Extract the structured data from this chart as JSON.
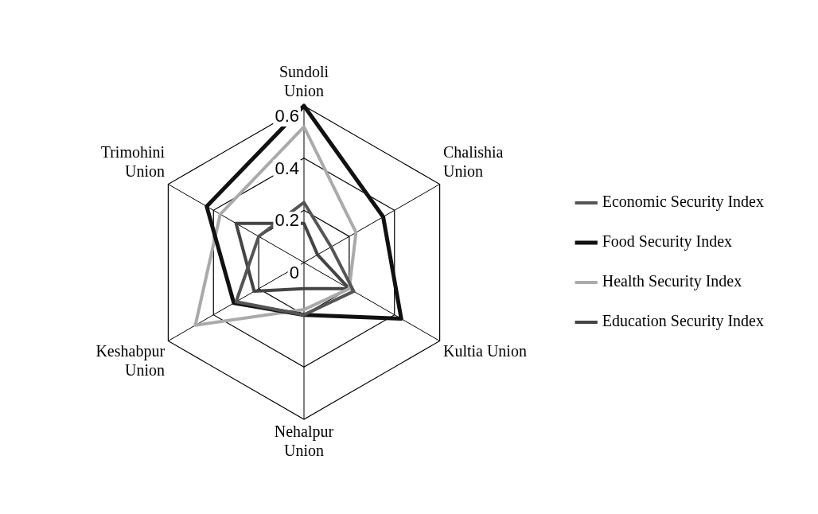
{
  "chart_data": {
    "type": "radar",
    "categories": [
      "Sundoli Union",
      "Chalishia Union",
      "Kultia Union",
      "Nehalpur Union",
      "Keshabpur Union",
      "Trimohini Union"
    ],
    "series": [
      {
        "name": "Economic Security Index",
        "color": "#555555",
        "values": [
          0.23,
          0.12,
          0.22,
          0.2,
          0.3,
          0.2
        ]
      },
      {
        "name": "Food Security Index",
        "color": "#111111",
        "values": [
          0.6,
          0.35,
          0.43,
          0.2,
          0.31,
          0.43
        ]
      },
      {
        "name": "Health Security Index",
        "color": "#aaaaaa",
        "values": [
          0.52,
          0.23,
          0.2,
          0.18,
          0.48,
          0.37
        ]
      },
      {
        "name": "Education Security Index",
        "color": "#444444",
        "values": [
          0.15,
          0.06,
          0.2,
          0.1,
          0.22,
          0.3
        ]
      }
    ],
    "ylim": [
      0,
      0.6
    ],
    "yticks": [
      0,
      0.2,
      0.4,
      0.6
    ],
    "grid": true,
    "legend": "right",
    "marker": "none",
    "line_style": "solid"
  }
}
